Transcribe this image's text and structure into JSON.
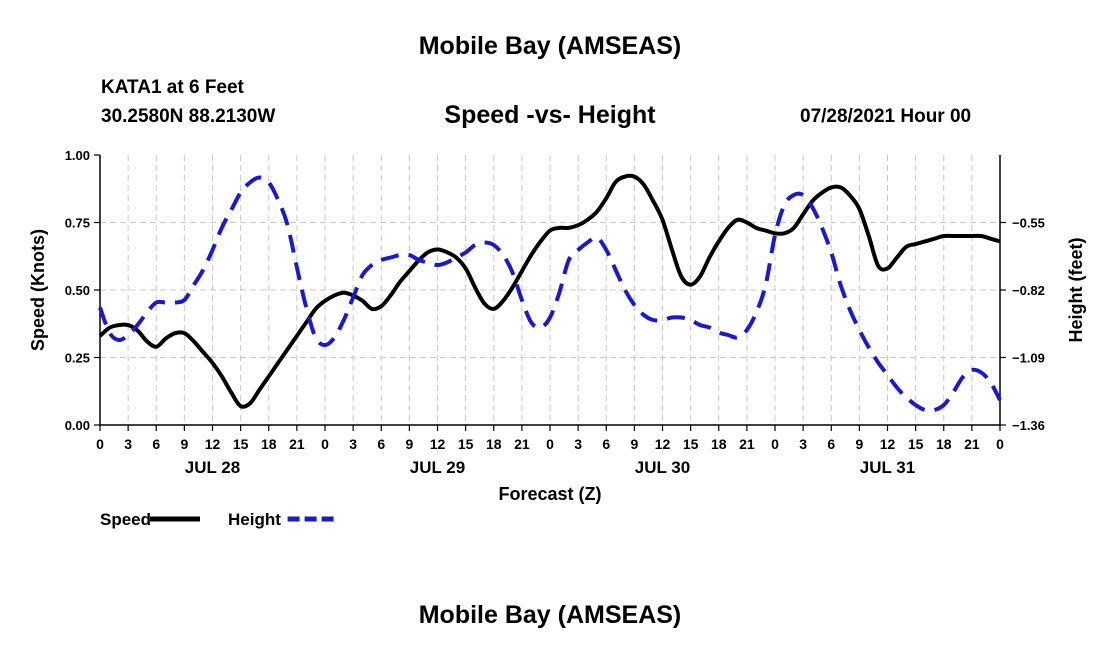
{
  "header": {
    "title": "Mobile Bay (AMSEAS)",
    "station": "KATA1 at 6 Feet",
    "coordinates": "30.2580N  88.2130W",
    "subtitle": "Speed -vs- Height",
    "datetime": "07/28/2021 Hour 00"
  },
  "footer": {
    "title": "Mobile Bay (AMSEAS)"
  },
  "chart_data": {
    "type": "line",
    "title": "Speed -vs- Height",
    "xlabel": "Forecast (Z)",
    "ylabel": "Speed (Knots)",
    "y2label": "Height (feet)",
    "xlim": [
      0,
      96
    ],
    "ylim": [
      0,
      1
    ],
    "y2lim": [
      -1.36,
      -0.28
    ],
    "x_tick_values": [
      0,
      3,
      6,
      9,
      12,
      15,
      18,
      21,
      24,
      27,
      30,
      33,
      36,
      39,
      42,
      45,
      48,
      51,
      54,
      57,
      60,
      63,
      66,
      69,
      72,
      75,
      78,
      81,
      84,
      87,
      90,
      93,
      96
    ],
    "x_tick_labels": [
      "0",
      "3",
      "6",
      "9",
      "12",
      "15",
      "18",
      "21",
      "0",
      "3",
      "6",
      "9",
      "12",
      "15",
      "18",
      "21",
      "0",
      "3",
      "6",
      "9",
      "12",
      "15",
      "18",
      "21",
      "0",
      "3",
      "6",
      "9",
      "12",
      "15",
      "18",
      "21",
      "0"
    ],
    "day_labels": [
      {
        "x": 12,
        "label": "JUL 28"
      },
      {
        "x": 36,
        "label": "JUL 29"
      },
      {
        "x": 60,
        "label": "JUL 30"
      },
      {
        "x": 84,
        "label": "JUL 31"
      }
    ],
    "y_ticks": [
      0,
      0.25,
      0.5,
      0.75,
      1.0
    ],
    "y_tick_labels": [
      "0.00",
      "0.25",
      "0.50",
      "0.75",
      "1.00"
    ],
    "y2_ticks": [
      -1.36,
      -1.09,
      -0.82,
      -0.55
    ],
    "y2_tick_labels": [
      "−1.36",
      "−1.09",
      "−0.82",
      "−0.55"
    ],
    "grid": true,
    "legend": "bottom-left",
    "series": [
      {
        "name": "Speed",
        "axis": "left",
        "color": "#000000",
        "dash": "solid",
        "x": [
          0,
          1,
          2,
          3,
          4,
          5,
          6,
          7,
          8,
          9,
          10,
          11,
          12,
          13,
          14,
          15,
          16,
          17,
          18,
          19,
          20,
          21,
          22,
          23,
          24,
          25,
          26,
          27,
          28,
          29,
          30,
          31,
          32,
          33,
          34,
          35,
          36,
          37,
          38,
          39,
          40,
          41,
          42,
          43,
          44,
          45,
          46,
          47,
          48,
          49,
          50,
          51,
          52,
          53,
          54,
          55,
          56,
          57,
          58,
          59,
          60,
          61,
          62,
          63,
          64,
          65,
          66,
          67,
          68,
          69,
          70,
          71,
          72,
          73,
          74,
          75,
          76,
          77,
          78,
          79,
          80,
          81,
          82,
          83,
          84,
          85,
          86,
          87,
          88,
          89,
          90,
          91,
          92,
          93,
          94,
          95,
          96
        ],
        "values": [
          0.33,
          0.36,
          0.37,
          0.37,
          0.35,
          0.31,
          0.29,
          0.32,
          0.34,
          0.34,
          0.31,
          0.27,
          0.23,
          0.18,
          0.12,
          0.07,
          0.08,
          0.13,
          0.18,
          0.23,
          0.28,
          0.33,
          0.38,
          0.43,
          0.46,
          0.48,
          0.49,
          0.48,
          0.46,
          0.43,
          0.44,
          0.48,
          0.53,
          0.57,
          0.61,
          0.64,
          0.65,
          0.64,
          0.62,
          0.58,
          0.51,
          0.45,
          0.43,
          0.46,
          0.51,
          0.57,
          0.63,
          0.68,
          0.72,
          0.73,
          0.73,
          0.74,
          0.76,
          0.79,
          0.84,
          0.9,
          0.92,
          0.92,
          0.89,
          0.83,
          0.76,
          0.65,
          0.55,
          0.52,
          0.55,
          0.62,
          0.68,
          0.73,
          0.76,
          0.75,
          0.73,
          0.72,
          0.71,
          0.71,
          0.73,
          0.78,
          0.83,
          0.86,
          0.88,
          0.88,
          0.85,
          0.8,
          0.7,
          0.59,
          0.58,
          0.62,
          0.66,
          0.67,
          0.68,
          0.69,
          0.7,
          0.7,
          0.7,
          0.7,
          0.7,
          0.69,
          0.68
        ]
      },
      {
        "name": "Height",
        "axis": "right",
        "color": "#1a1acc",
        "dash": "dashed",
        "x": [
          0,
          1,
          2,
          3,
          4,
          5,
          6,
          7,
          8,
          9,
          10,
          11,
          12,
          13,
          14,
          15,
          16,
          17,
          18,
          19,
          20,
          21,
          22,
          23,
          24,
          25,
          26,
          27,
          28,
          29,
          30,
          31,
          32,
          33,
          34,
          35,
          36,
          37,
          38,
          39,
          40,
          41,
          42,
          43,
          44,
          45,
          46,
          47,
          48,
          49,
          50,
          51,
          52,
          53,
          54,
          55,
          56,
          57,
          58,
          59,
          60,
          61,
          62,
          63,
          64,
          65,
          66,
          67,
          68,
          69,
          70,
          71,
          72,
          73,
          74,
          75,
          76,
          77,
          78,
          79,
          80,
          81,
          82,
          83,
          84,
          85,
          86,
          87,
          88,
          89,
          90,
          91,
          92,
          93,
          94,
          95,
          96
        ],
        "values": [
          -0.89,
          -0.99,
          -1.02,
          -1.0,
          -0.96,
          -0.91,
          -0.87,
          -0.87,
          -0.87,
          -0.86,
          -0.8,
          -0.74,
          -0.66,
          -0.57,
          -0.5,
          -0.43,
          -0.39,
          -0.37,
          -0.39,
          -0.46,
          -0.56,
          -0.73,
          -0.89,
          -1.01,
          -1.04,
          -1.01,
          -0.94,
          -0.85,
          -0.76,
          -0.72,
          -0.7,
          -0.69,
          -0.68,
          -0.68,
          -0.7,
          -0.71,
          -0.72,
          -0.71,
          -0.69,
          -0.67,
          -0.64,
          -0.63,
          -0.64,
          -0.68,
          -0.75,
          -0.86,
          -0.95,
          -0.97,
          -0.93,
          -0.83,
          -0.7,
          -0.66,
          -0.63,
          -0.61,
          -0.66,
          -0.74,
          -0.82,
          -0.88,
          -0.92,
          -0.94,
          -0.94,
          -0.93,
          -0.93,
          -0.94,
          -0.96,
          -0.97,
          -0.99,
          -1.0,
          -1.01,
          -0.98,
          -0.91,
          -0.8,
          -0.6,
          -0.48,
          -0.44,
          -0.44,
          -0.49,
          -0.57,
          -0.67,
          -0.8,
          -0.9,
          -0.98,
          -1.05,
          -1.11,
          -1.16,
          -1.21,
          -1.25,
          -1.28,
          -1.3,
          -1.3,
          -1.28,
          -1.23,
          -1.17,
          -1.14,
          -1.15,
          -1.19,
          -1.26
        ]
      }
    ]
  }
}
